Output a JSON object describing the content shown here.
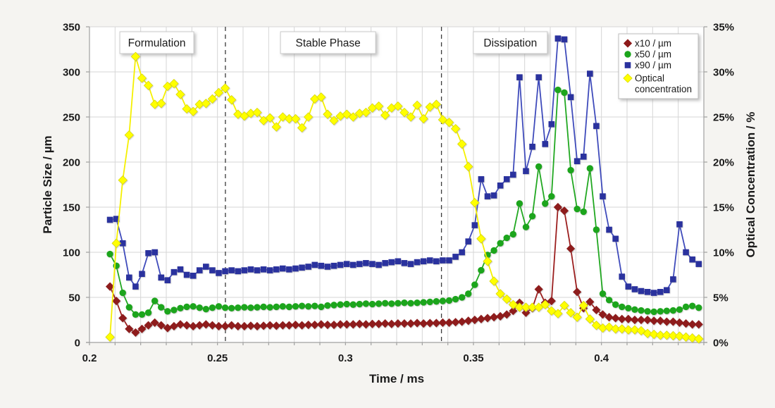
{
  "chart_data": {
    "type": "line",
    "x_axis": {
      "label": "Time / ms",
      "min": 0.2,
      "max": 0.44,
      "grid_step": 0.01,
      "label_step": 0.05,
      "tick_labels": [
        "0.2",
        "0.25",
        "0.3",
        "0.35",
        "0.4"
      ]
    },
    "y_left": {
      "label": "Particle Size / µm",
      "min": 0,
      "max": 350,
      "step": 50,
      "tick_labels": [
        "0",
        "50",
        "100",
        "150",
        "200",
        "250",
        "300",
        "350"
      ]
    },
    "y_right": {
      "label": "Optical Concentration / %",
      "min": 0,
      "max": 35,
      "step": 5,
      "tick_labels": [
        "0%",
        "5%",
        "10%",
        "15%",
        "20%",
        "25%",
        "30%",
        "35%"
      ]
    },
    "grid": true,
    "legend_position": "top-right",
    "phases": {
      "dividers": [
        0.2531,
        0.3375
      ],
      "labels": [
        {
          "text": "Formulation",
          "t_center": 0.2263
        },
        {
          "text": "Stable Phase",
          "t_center": 0.2932
        },
        {
          "text": "Dissipation",
          "t_center": 0.3644
        }
      ]
    },
    "x": [
      0.208,
      0.2105,
      0.213,
      0.2155,
      0.218,
      0.2205,
      0.223,
      0.2255,
      0.228,
      0.2305,
      0.233,
      0.2355,
      0.238,
      0.2405,
      0.243,
      0.2455,
      0.248,
      0.2505,
      0.253,
      0.2555,
      0.258,
      0.2605,
      0.263,
      0.2655,
      0.268,
      0.2705,
      0.273,
      0.2755,
      0.278,
      0.2805,
      0.283,
      0.2855,
      0.288,
      0.2905,
      0.293,
      0.2955,
      0.298,
      0.3005,
      0.303,
      0.3055,
      0.308,
      0.3105,
      0.313,
      0.3155,
      0.318,
      0.3205,
      0.323,
      0.3255,
      0.328,
      0.3305,
      0.333,
      0.3355,
      0.338,
      0.3405,
      0.343,
      0.3455,
      0.348,
      0.3505,
      0.353,
      0.3555,
      0.358,
      0.3605,
      0.363,
      0.3655,
      0.368,
      0.3705,
      0.373,
      0.3755,
      0.378,
      0.3805,
      0.383,
      0.3855,
      0.388,
      0.3905,
      0.393,
      0.3955,
      0.398,
      0.4005,
      0.403,
      0.4055,
      0.408,
      0.4105,
      0.413,
      0.4155,
      0.418,
      0.4205,
      0.423,
      0.4255,
      0.428,
      0.4305,
      0.433,
      0.4355,
      0.438
    ],
    "series": [
      {
        "name": "x90 / µm",
        "legend_lines": [
          "x90 / µm"
        ],
        "axis": "left",
        "marker": "square",
        "color": "#2A319E",
        "line_color": "#3F4BBB",
        "values": [
          136,
          137,
          110,
          72,
          62,
          76,
          99,
          100,
          72,
          69,
          78,
          81,
          75,
          74,
          80,
          84,
          80,
          77,
          79,
          80,
          79,
          80,
          81,
          80,
          81,
          80,
          81,
          82,
          81,
          82,
          83,
          84,
          86,
          85,
          84,
          85,
          86,
          87,
          86,
          87,
          88,
          87,
          86,
          88,
          89,
          90,
          88,
          87,
          89,
          90,
          91,
          90,
          91,
          91,
          95,
          100,
          112,
          130,
          181,
          162,
          163,
          174,
          181,
          186,
          294,
          190,
          217,
          294,
          220,
          242,
          337,
          336,
          272,
          201,
          206,
          298,
          240,
          162,
          125,
          115,
          73,
          62,
          59,
          57,
          56,
          55,
          56,
          58,
          70,
          131,
          100,
          92,
          87
        ]
      },
      {
        "name": "x50 / µm",
        "legend_lines": [
          "x50 / µm"
        ],
        "axis": "left",
        "marker": "circle",
        "color": "#1CA51C",
        "line_color": "#21A821",
        "values": [
          98,
          85,
          55,
          39,
          31,
          31,
          33,
          46,
          39,
          34.5,
          36,
          38,
          39.5,
          40,
          38.5,
          37,
          38.5,
          40,
          38.5,
          38,
          38.5,
          39,
          38.5,
          39,
          39.5,
          39,
          39.5,
          40,
          39.5,
          40,
          40.5,
          40,
          40.5,
          39.5,
          41,
          41.5,
          42,
          42.5,
          42,
          42.5,
          43,
          42.5,
          43,
          43.5,
          43,
          43.5,
          44,
          43.5,
          44,
          44.5,
          45,
          45.5,
          46,
          46.5,
          48,
          50,
          54,
          64,
          80,
          97,
          102,
          110,
          116,
          120,
          154,
          128,
          140,
          195,
          154,
          162,
          280,
          277,
          191,
          148,
          145,
          193,
          125,
          54,
          47,
          42,
          39.5,
          38,
          36.5,
          35.5,
          34.5,
          34,
          34.5,
          35,
          35.5,
          36.5,
          39.5,
          40.5,
          38.5
        ]
      },
      {
        "name": "x10 / µm",
        "legend_lines": [
          "x10 / µm"
        ],
        "axis": "left",
        "marker": "diamond",
        "color": "#8E1A1A",
        "line_color": "#9B1E1E",
        "values": [
          62,
          46,
          27,
          15,
          11,
          15,
          19,
          22,
          19,
          16,
          18,
          20,
          19,
          18,
          19,
          20,
          19,
          18,
          18,
          19,
          18,
          18,
          18.5,
          18,
          18.5,
          19,
          18.5,
          19,
          19,
          19.5,
          19,
          19.5,
          19.5,
          20,
          19.5,
          19.5,
          20,
          20,
          20,
          20.5,
          20,
          20.5,
          20.5,
          21,
          20.5,
          21,
          21,
          21,
          21.5,
          21,
          21.5,
          21.5,
          22,
          22,
          22.5,
          23,
          24,
          25,
          26,
          27,
          28,
          29,
          31,
          35,
          44,
          33,
          38,
          59,
          44,
          46,
          150,
          146,
          104,
          56,
          38,
          45,
          36,
          31,
          28,
          27,
          26,
          26,
          25,
          25,
          25,
          24,
          24,
          23,
          23,
          22,
          21,
          20,
          20
        ]
      },
      {
        "name": "Optical concentration",
        "legend_lines": [
          "Optical",
          "concentration"
        ],
        "axis": "right",
        "marker": "diamond",
        "color": "#FFFF00",
        "line_color": "#F5F000",
        "marker_stroke": "#D9D900",
        "values": [
          0.6,
          11,
          18,
          23,
          31.7,
          29.3,
          28.5,
          26.4,
          26.5,
          28.4,
          28.7,
          27.5,
          25.9,
          25.6,
          26.4,
          26.5,
          27.0,
          27.7,
          28.2,
          26.9,
          25.3,
          25.1,
          25.4,
          25.5,
          24.6,
          24.9,
          23.9,
          25.0,
          24.8,
          24.8,
          23.8,
          25.0,
          27.0,
          27.2,
          25.3,
          24.6,
          25.1,
          25.3,
          25.0,
          25.4,
          25.5,
          26.0,
          26.2,
          25.2,
          26.0,
          26.2,
          25.5,
          25.0,
          26.3,
          24.8,
          26.1,
          26.4,
          24.7,
          24.4,
          23.7,
          22.0,
          19.5,
          15.5,
          11.5,
          9.0,
          6.8,
          5.4,
          4.8,
          4.2,
          3.9,
          3.9,
          3.9,
          3.9,
          4.2,
          3.5,
          3.2,
          4.1,
          3.3,
          2.8,
          4.1,
          2.6,
          1.9,
          1.6,
          1.7,
          1.5,
          1.5,
          1.4,
          1.4,
          1.3,
          1.0,
          0.9,
          0.8,
          0.8,
          0.75,
          0.7,
          0.6,
          0.5,
          0.4
        ]
      }
    ],
    "legend_order": [
      "x10 / µm",
      "x50 / µm",
      "x90 / µm",
      "Optical concentration"
    ],
    "colors": {
      "background": "#F5F4F1",
      "plot_background": "#FFFFFF",
      "gridline": "#D6D6D6",
      "axis_line": "#A0A0A0",
      "divider": "#3A3A3A"
    }
  }
}
